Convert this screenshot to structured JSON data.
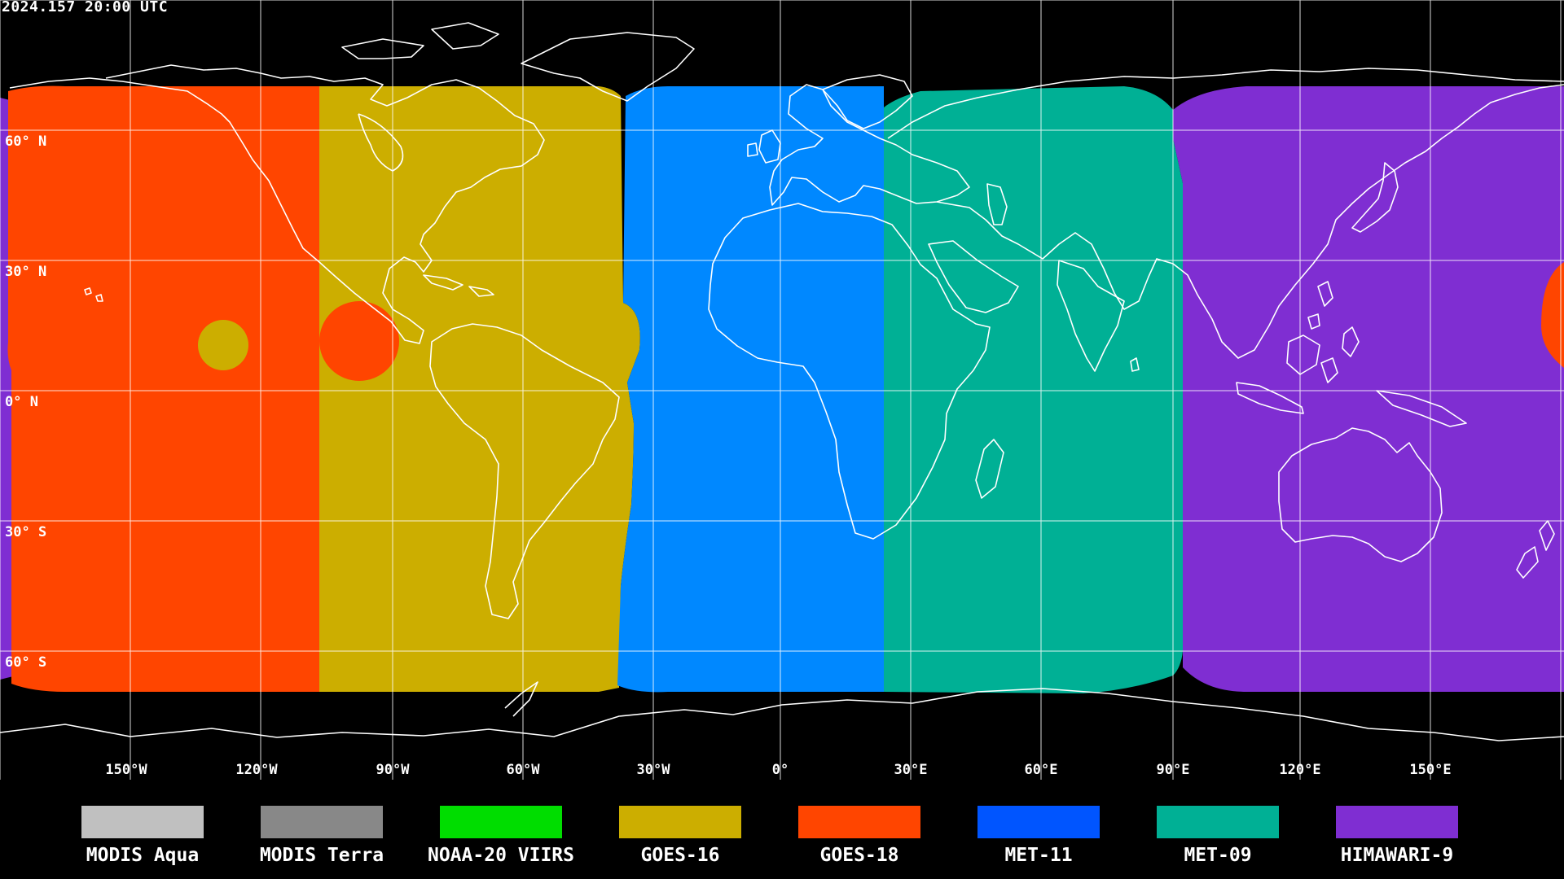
{
  "timestamp": "2024.157 20:00 UTC",
  "lat_labels": [
    "60° N",
    "30° N",
    "0° N",
    "30° S",
    "60° S"
  ],
  "lon_labels": [
    "150°W",
    "120°W",
    "90°W",
    "60°W",
    "30°W",
    "0°",
    "30°E",
    "60°E",
    "90°E",
    "120°E",
    "150°E"
  ],
  "colors": {
    "modis_aqua": "#c0c0c0",
    "modis_terra": "#888888",
    "noaa20_viirs": "#00dd00",
    "goes16": "#ccae00",
    "goes18": "#ff4500",
    "met11": "#0088ff",
    "met11_swatch": "#0055ff",
    "met09": "#00b095",
    "himawari9": "#7f2ed2",
    "grid": "#ffffff",
    "coast": "#ffffff",
    "background": "#000000"
  },
  "legend": [
    {
      "label": "MODIS Aqua",
      "color": "#c0c0c0"
    },
    {
      "label": "MODIS Terra",
      "color": "#888888"
    },
    {
      "label": "NOAA-20 VIIRS",
      "color": "#00dd00"
    },
    {
      "label": "GOES-16",
      "color": "#ccae00"
    },
    {
      "label": "GOES-18",
      "color": "#ff4500"
    },
    {
      "label": "MET-11",
      "color": "#0055ff"
    },
    {
      "label": "MET-09",
      "color": "#00b095"
    },
    {
      "label": "HIMAWARI-9",
      "color": "#7f2ed2"
    }
  ]
}
